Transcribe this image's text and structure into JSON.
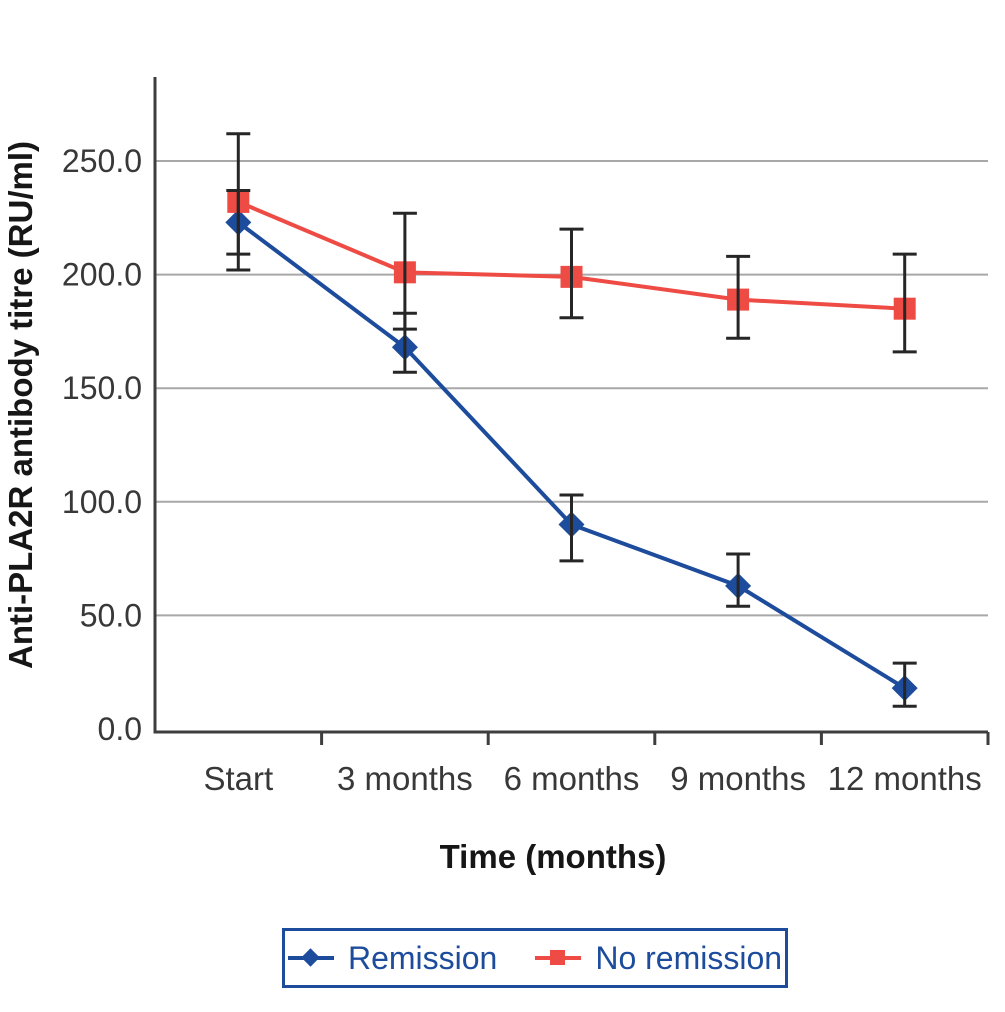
{
  "chart_data": {
    "type": "line",
    "title": "",
    "xlabel": "Time (months)",
    "ylabel": "Anti-PLA2R antibody titre (RU/ml)",
    "categories": [
      "Start",
      "3 months",
      "6 months",
      "9 months",
      "12 months"
    ],
    "y_ticks": [
      "0.0",
      "50.0",
      "100.0",
      "150.0",
      "200.0",
      "250.0"
    ],
    "ylim": [
      0,
      287
    ],
    "grid": "horizontal-only",
    "legend_position": "bottom",
    "series": [
      {
        "name": "Remission",
        "marker": "diamond",
        "color": "#1d4c9c",
        "values": [
          223,
          168,
          90,
          63,
          18
        ],
        "error_upper": [
          237,
          183,
          103,
          77,
          29
        ],
        "error_lower": [
          209,
          157,
          74,
          54,
          10
        ]
      },
      {
        "name": "No remission",
        "marker": "square",
        "color": "#ee4b45",
        "values": [
          232,
          201,
          199,
          189,
          185
        ],
        "error_upper": [
          262,
          227,
          220,
          208,
          209
        ],
        "error_lower": [
          202,
          176,
          181,
          172,
          166
        ]
      }
    ]
  },
  "style": {
    "axis_color": "#3e3e3e",
    "grid_color": "#a8a8a8",
    "error_bar_color": "#262626",
    "tick_label_color": "#383838",
    "title_color": "#161616",
    "legend_border_color": "#1d4c9c",
    "legend_text_color": "#1d4c9c",
    "background": "#ffffff"
  }
}
